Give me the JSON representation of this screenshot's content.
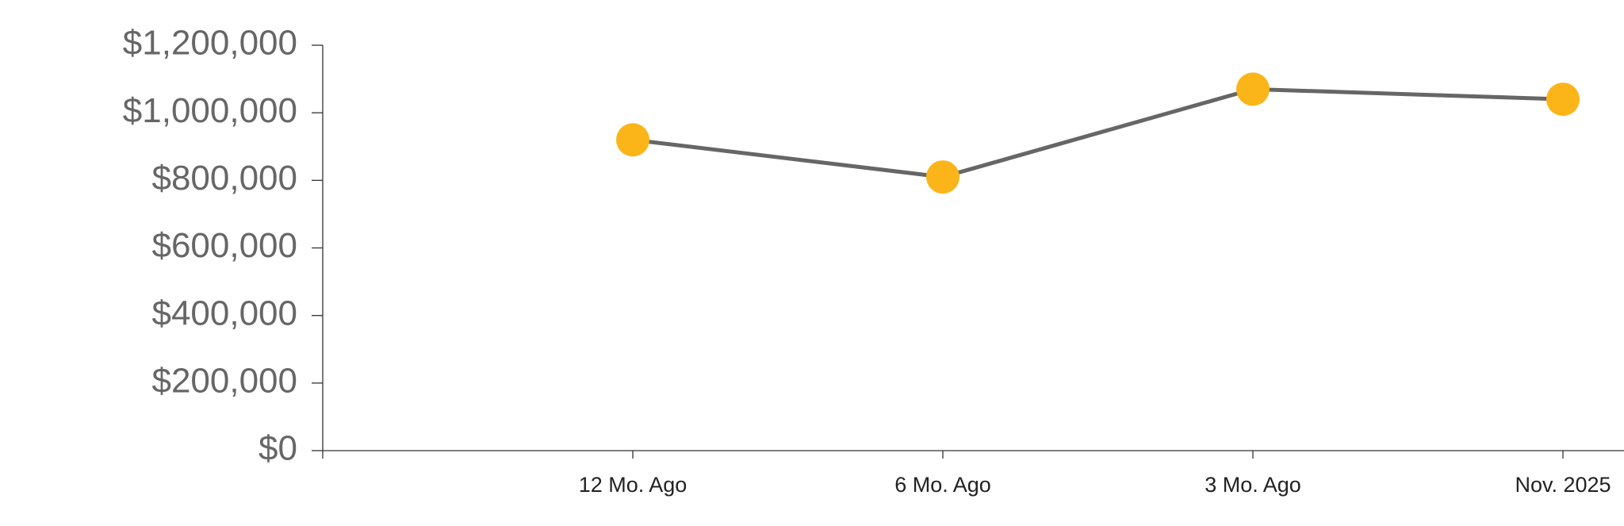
{
  "chart_data": {
    "type": "line",
    "categories": [
      null,
      "12 Mo. Ago",
      "6 Mo. Ago",
      "3 Mo. Ago",
      "Nov. 2025"
    ],
    "series": [
      {
        "color": "#666666",
        "marker_color": "#fbb519",
        "values": [
          null,
          920000,
          810000,
          1070000,
          1040000
        ]
      }
    ],
    "ylim": [
      0,
      1200000
    ],
    "yticks": [
      {
        "value": 0,
        "label": "$0"
      },
      {
        "value": 200000,
        "label": "$200,000"
      },
      {
        "value": 400000,
        "label": "$400,000"
      },
      {
        "value": 600000,
        "label": "$600,000"
      },
      {
        "value": 800000,
        "label": "$800,000"
      },
      {
        "value": 1000000,
        "label": "$1,000,000"
      },
      {
        "value": 1200000,
        "label": "$1,200,000"
      }
    ],
    "grid": false
  }
}
